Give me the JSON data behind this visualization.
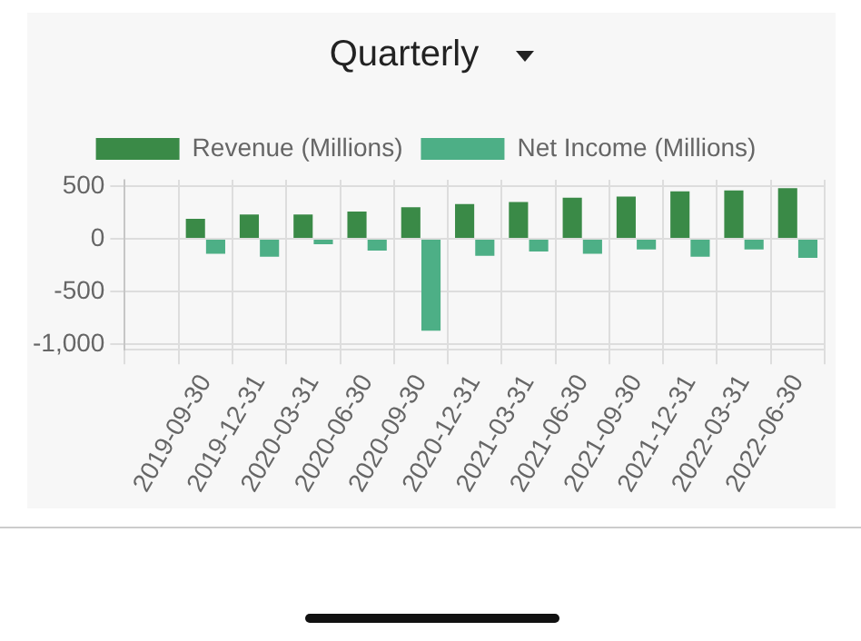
{
  "chart_data": {
    "type": "bar",
    "title": "Quarterly",
    "categories": [
      null,
      "2019-09-30",
      "2019-12-31",
      "2020-03-31",
      "2020-06-30",
      "2020-09-30",
      "2020-12-31",
      "2021-03-31",
      "2021-06-30",
      "2021-09-30",
      "2021-12-31",
      "2022-03-31",
      "2022-06-30"
    ],
    "series": [
      {
        "name": "Revenue (Millions)",
        "color": "#3a8a47",
        "values": [
          null,
          190,
          230,
          230,
          260,
          300,
          330,
          350,
          390,
          400,
          450,
          460,
          480
        ]
      },
      {
        "name": "Net Income (Millions)",
        "color": "#4daf86",
        "values": [
          null,
          -140,
          -170,
          -50,
          -110,
          -870,
          -160,
          -120,
          -140,
          -100,
          -170,
          -100,
          -180
        ]
      }
    ],
    "ylim": [
      -1050,
      560
    ],
    "yticks": [
      {
        "value": -1000,
        "label": "-1,000"
      },
      -500,
      0,
      500
    ],
    "grid": true,
    "legend": "top"
  }
}
